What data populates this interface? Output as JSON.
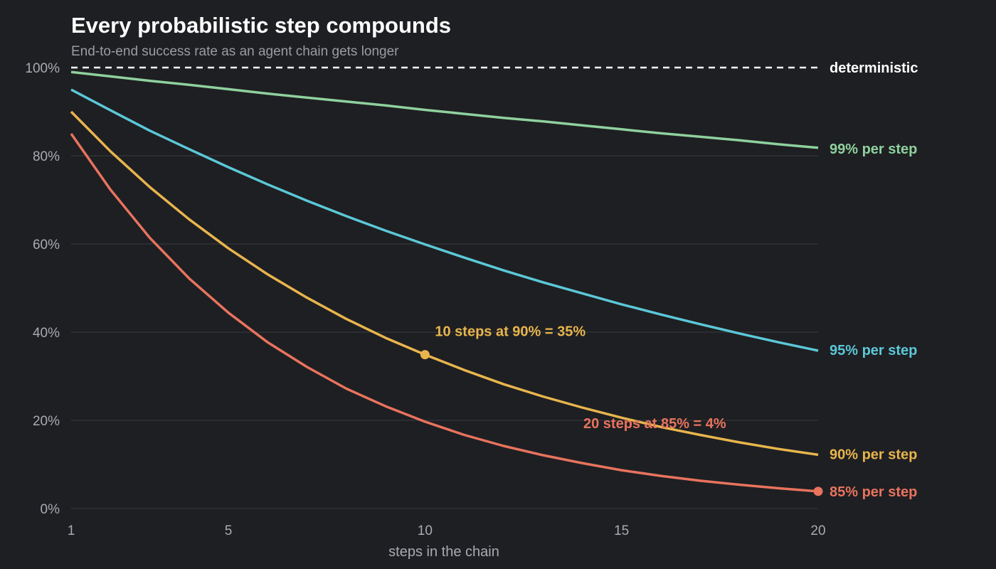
{
  "chart_data": {
    "type": "line",
    "title": "Every probabilistic step compounds",
    "subtitle": "End-to-end success rate as an agent chain gets longer",
    "xlabel": "steps in the chain",
    "ylabel": "",
    "xlim": [
      1,
      20
    ],
    "ylim": [
      0,
      1
    ],
    "x_ticks": [
      1,
      5,
      10,
      15,
      20
    ],
    "y_ticks": [
      {
        "value": 0,
        "label": "0%"
      },
      {
        "value": 0.2,
        "label": "20%"
      },
      {
        "value": 0.4,
        "label": "40%"
      },
      {
        "value": 0.6,
        "label": "60%"
      },
      {
        "value": 0.8,
        "label": "80%"
      },
      {
        "value": 1.0,
        "label": "100%"
      }
    ],
    "grid": "horizontal",
    "x": [
      1,
      2,
      3,
      4,
      5,
      6,
      7,
      8,
      9,
      10,
      11,
      12,
      13,
      14,
      15,
      16,
      17,
      18,
      19,
      20
    ],
    "series": [
      {
        "name": "deterministic",
        "label": "deterministic",
        "color": "#ffffff",
        "dashed": true,
        "values": [
          1,
          1,
          1,
          1,
          1,
          1,
          1,
          1,
          1,
          1,
          1,
          1,
          1,
          1,
          1,
          1,
          1,
          1,
          1,
          1
        ]
      },
      {
        "name": "99% per step",
        "label": "99% per step",
        "color": "#8fd19e",
        "dashed": false,
        "values": [
          0.99,
          0.98,
          0.97,
          0.961,
          0.951,
          0.941,
          0.932,
          0.923,
          0.914,
          0.904,
          0.895,
          0.886,
          0.878,
          0.869,
          0.86,
          0.851,
          0.843,
          0.835,
          0.826,
          0.818
        ]
      },
      {
        "name": "95% per step",
        "label": "95% per step",
        "color": "#5bc8d8",
        "dashed": false,
        "values": [
          0.95,
          0.903,
          0.857,
          0.815,
          0.774,
          0.735,
          0.698,
          0.663,
          0.63,
          0.599,
          0.569,
          0.54,
          0.513,
          0.488,
          0.463,
          0.44,
          0.418,
          0.397,
          0.377,
          0.358
        ]
      },
      {
        "name": "90% per step",
        "label": "90% per step",
        "color": "#e8b54d",
        "dashed": false,
        "values": [
          0.9,
          0.81,
          0.729,
          0.656,
          0.59,
          0.531,
          0.478,
          0.43,
          0.387,
          0.349,
          0.314,
          0.282,
          0.254,
          0.229,
          0.206,
          0.185,
          0.167,
          0.15,
          0.135,
          0.122
        ]
      },
      {
        "name": "85% per step",
        "label": "85% per step",
        "color": "#e8735e",
        "dashed": false,
        "values": [
          0.85,
          0.723,
          0.614,
          0.522,
          0.444,
          0.377,
          0.321,
          0.272,
          0.232,
          0.197,
          0.167,
          0.142,
          0.121,
          0.103,
          0.087,
          0.074,
          0.063,
          0.054,
          0.046,
          0.039
        ]
      }
    ],
    "annotations": [
      {
        "text": "10 steps at 90% = 35%",
        "x": 10,
        "y": 0.349,
        "color": "#e8b54d"
      },
      {
        "text": "20 steps at 85% = 4%",
        "x": 20,
        "y": 0.039,
        "color": "#e8735e"
      }
    ]
  }
}
